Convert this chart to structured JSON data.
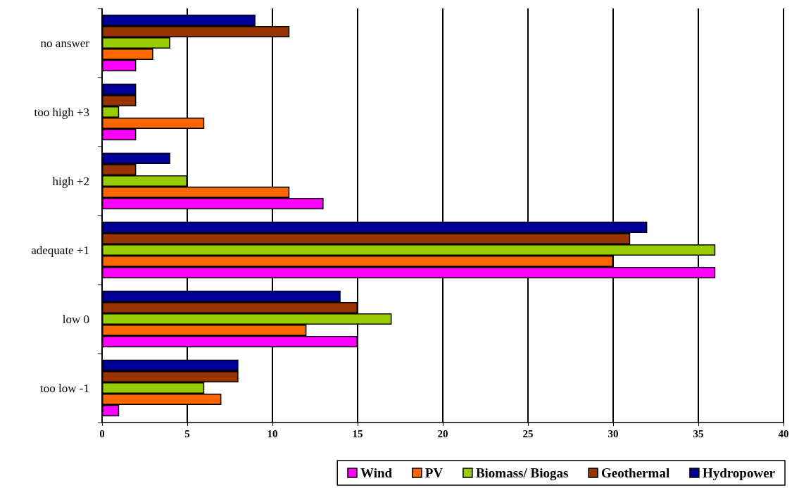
{
  "chart_data": {
    "type": "bar",
    "orientation": "horizontal",
    "categories": [
      "no answer",
      "too high +3",
      "high +2",
      "adequate +1",
      "low 0",
      "too low -1"
    ],
    "series": [
      {
        "name": "Wind",
        "color": "#ff00ff",
        "values": [
          2,
          2,
          13,
          36,
          15,
          1
        ]
      },
      {
        "name": "PV",
        "color": "#ff6600",
        "values": [
          3,
          6,
          11,
          30,
          12,
          7
        ]
      },
      {
        "name": "Biomass/ Biogas",
        "color": "#99cc00",
        "values": [
          4,
          1,
          5,
          36,
          17,
          6
        ]
      },
      {
        "name": "Geothermal",
        "color": "#993300",
        "values": [
          11,
          2,
          2,
          31,
          15,
          8
        ]
      },
      {
        "name": "Hydropower",
        "color": "#000099",
        "values": [
          9,
          2,
          4,
          32,
          14,
          8
        ]
      }
    ],
    "xlim": [
      0,
      40
    ],
    "xticks": [
      0,
      5,
      10,
      15,
      20,
      25,
      30,
      35,
      40
    ],
    "grid": "x",
    "legend": "bottom"
  }
}
